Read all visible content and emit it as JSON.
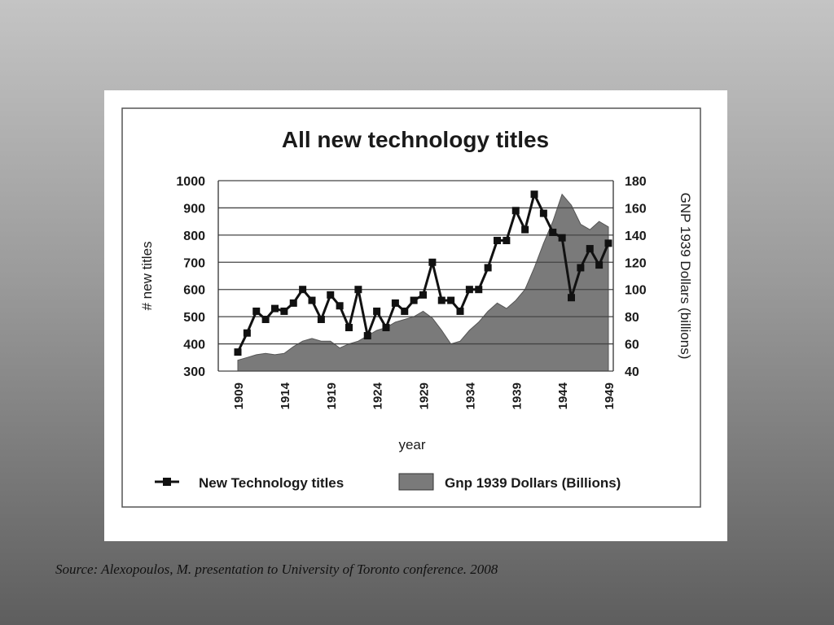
{
  "source_caption": "Source: Alexopoulos, M. presentation to University of Toronto conference. 2008",
  "colors": {
    "line": "#111111",
    "area_fill": "#7a7a7a",
    "grid": "#444444",
    "card": "#ffffff"
  },
  "chart_data": {
    "type": "line",
    "title": "All new technology titles",
    "xlabel": "year",
    "ylabel": "# new titles",
    "y2label": "GNP 1939 Dollars (billions)",
    "xlim": [
      1909,
      1949
    ],
    "ylim": [
      300,
      1000
    ],
    "y2lim": [
      40,
      180
    ],
    "yticks": [
      300,
      400,
      500,
      600,
      700,
      800,
      900,
      1000
    ],
    "y2ticks": [
      40,
      60,
      80,
      100,
      120,
      140,
      160,
      180
    ],
    "xticks": [
      1909,
      1914,
      1919,
      1924,
      1929,
      1934,
      1939,
      1944,
      1949
    ],
    "grid": true,
    "legend": "bottom",
    "series": [
      {
        "name": "New Technology titles",
        "type": "line",
        "axis": "left",
        "x": [
          1909,
          1910,
          1911,
          1912,
          1913,
          1914,
          1915,
          1916,
          1917,
          1918,
          1919,
          1920,
          1921,
          1922,
          1923,
          1924,
          1925,
          1926,
          1927,
          1928,
          1929,
          1930,
          1931,
          1932,
          1933,
          1934,
          1935,
          1936,
          1937,
          1938,
          1939,
          1940,
          1941,
          1942,
          1943,
          1944,
          1945,
          1946,
          1947,
          1948,
          1949
        ],
        "values": [
          370,
          440,
          520,
          490,
          530,
          520,
          550,
          600,
          560,
          490,
          580,
          540,
          460,
          600,
          430,
          520,
          460,
          550,
          520,
          560,
          580,
          700,
          560,
          560,
          520,
          600,
          600,
          680,
          780,
          780,
          890,
          820,
          950,
          880,
          810,
          790,
          570,
          680,
          750,
          690,
          770
        ]
      },
      {
        "name": "Gnp 1939 Dollars (Billions)",
        "type": "area",
        "axis": "right",
        "x": [
          1909,
          1910,
          1911,
          1912,
          1913,
          1914,
          1915,
          1916,
          1917,
          1918,
          1919,
          1920,
          1921,
          1922,
          1923,
          1924,
          1925,
          1926,
          1927,
          1928,
          1929,
          1930,
          1931,
          1932,
          1933,
          1934,
          1935,
          1936,
          1937,
          1938,
          1939,
          1940,
          1941,
          1942,
          1943,
          1944,
          1945,
          1946,
          1947,
          1948,
          1949
        ],
        "values": [
          48,
          50,
          52,
          53,
          52,
          53,
          58,
          62,
          64,
          62,
          62,
          57,
          60,
          62,
          66,
          70,
          72,
          76,
          78,
          80,
          84,
          79,
          70,
          60,
          62,
          70,
          76,
          84,
          90,
          86,
          92,
          100,
          116,
          134,
          150,
          170,
          162,
          148,
          144,
          150,
          146
        ]
      }
    ]
  }
}
